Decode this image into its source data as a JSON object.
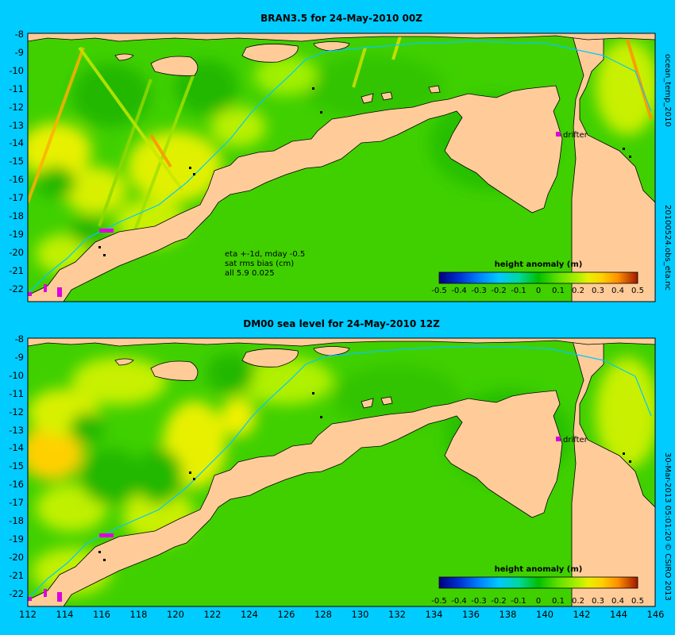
{
  "panels": [
    {
      "title": "BRAN3.5 for 24-May-2010 00Z",
      "stats_lines": [
        "eta +-1d, mday -0.5",
        "sat rms bias (cm)",
        "all 5.9 0.025"
      ]
    },
    {
      "title": "DM00 sea level  for 24-May-2010 12Z",
      "stats_lines": []
    }
  ],
  "colorbar": {
    "title": "height anomaly (m)",
    "ticks": [
      "-0.5",
      "-0.4",
      "-0.3",
      "-0.2",
      "-0.1",
      "0",
      "0.1",
      "0.2",
      "0.3",
      "0.4",
      "0.5"
    ],
    "colors": [
      "#000080",
      "#0030d0",
      "#0080ff",
      "#00c8ff",
      "#00d8a0",
      "#00c000",
      "#60e000",
      "#b0f000",
      "#e8f000",
      "#ffd000",
      "#ff9000",
      "#e05000",
      "#a01800"
    ]
  },
  "drifter_label": "drifter",
  "y_ticks": [
    "-8",
    "-9",
    "-10",
    "-11",
    "-12",
    "-13",
    "-14",
    "-15",
    "-16",
    "-17",
    "-18",
    "-19",
    "-20",
    "-21",
    "-22"
  ],
  "x_ticks": [
    "112",
    "114",
    "116",
    "118",
    "120",
    "122",
    "124",
    "126",
    "128",
    "130",
    "132",
    "134",
    "136",
    "138",
    "140",
    "142",
    "144",
    "146"
  ],
  "side_labels": {
    "top_upper": "ocean_temp_2010",
    "top_lower": "20100524.obs_eta.nc",
    "bottom_upper": "30-Mar-2013 05:01:20",
    "bottom_lower": "© CSIRO 2013"
  },
  "colors": {
    "background": "#00ccff",
    "land": "#ffcc99",
    "ocean_base": "#40d000",
    "anomaly_marker": "#dd00dd"
  }
}
